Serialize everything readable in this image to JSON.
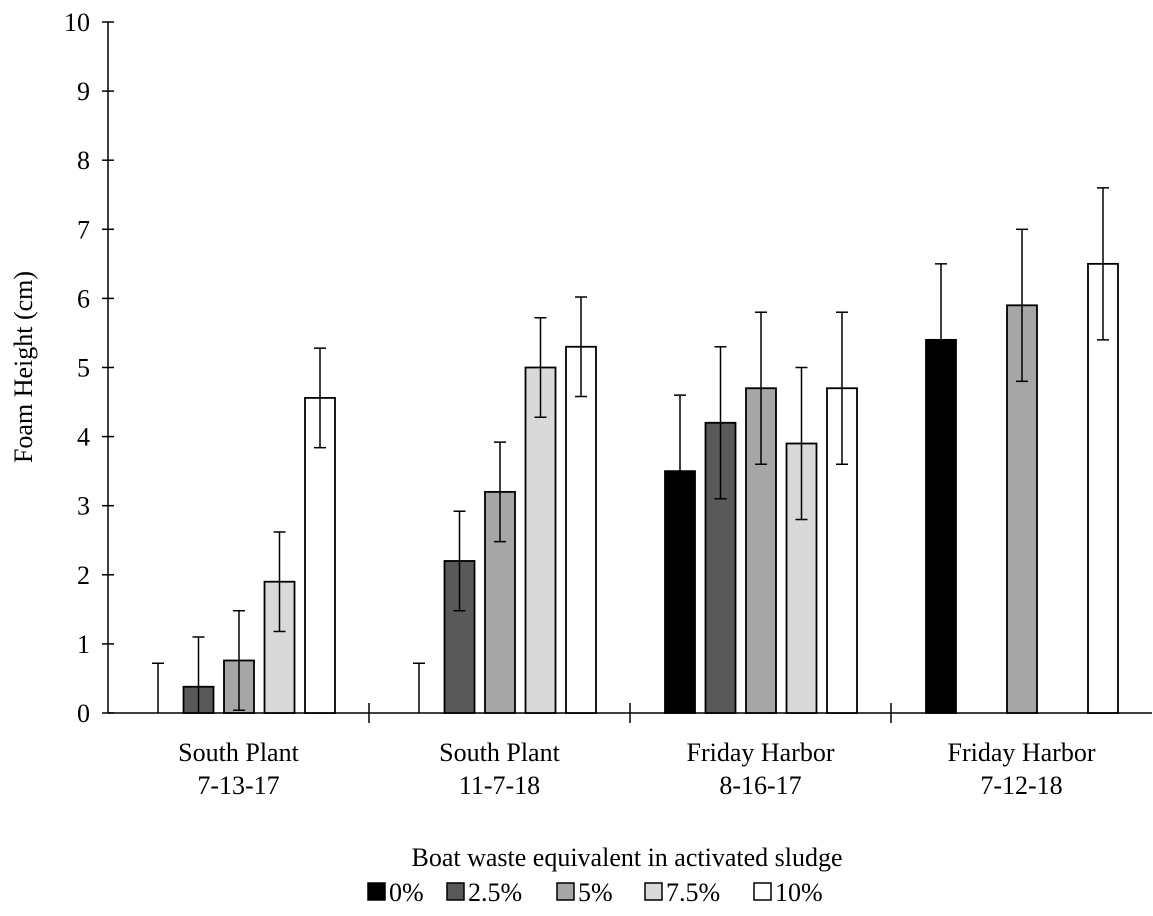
{
  "chart_data": {
    "type": "bar",
    "categories": [
      [
        "South Plant",
        "7-13-17"
      ],
      [
        "South Plant",
        "11-7-18"
      ],
      [
        "Friday Harbor",
        "8-16-17"
      ],
      [
        "Friday Harbor",
        "7-12-18"
      ]
    ],
    "series": [
      {
        "name": "0%",
        "color": "#000000",
        "values": [
          0,
          0,
          3.5,
          5.4
        ],
        "errors": [
          0.72,
          0.72,
          1.1,
          1.1
        ]
      },
      {
        "name": "2.5%",
        "color": "#595959",
        "values": [
          0.38,
          2.2,
          4.2,
          null
        ],
        "errors": [
          0.72,
          0.72,
          1.1,
          null
        ]
      },
      {
        "name": "5%",
        "color": "#a6a6a6",
        "values": [
          0.76,
          3.2,
          4.7,
          5.9
        ],
        "errors": [
          0.72,
          0.72,
          1.1,
          1.1
        ]
      },
      {
        "name": "7.5%",
        "color": "#d9d9d9",
        "values": [
          1.9,
          5.0,
          3.9,
          null
        ],
        "errors": [
          0.72,
          0.72,
          1.1,
          null
        ]
      },
      {
        "name": "10%",
        "color": "#ffffff",
        "values": [
          4.56,
          5.3,
          4.7,
          6.5
        ],
        "errors": [
          0.72,
          0.72,
          1.1,
          1.1
        ]
      }
    ],
    "xlabel": "Boat waste equivalent in activated sludge",
    "ylabel": "Foam Height (cm)",
    "ylim": [
      0,
      10
    ],
    "yticks": [
      0,
      1,
      2,
      3,
      4,
      5,
      6,
      7,
      8,
      9,
      10
    ],
    "grid": false,
    "legend": "bottom-center"
  }
}
